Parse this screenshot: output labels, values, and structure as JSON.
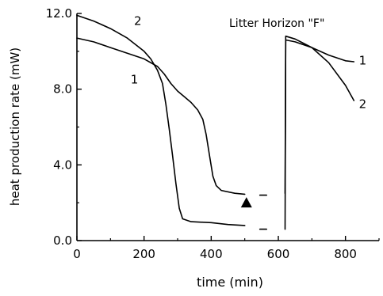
{
  "chart_data": {
    "type": "line",
    "title": "Litter Horizon \"F\"",
    "xlabel": "time (min)",
    "ylabel": "heat production rate (mW)",
    "xlim": [
      0,
      900
    ],
    "ylim": [
      0,
      12
    ],
    "x_ticks": [
      0,
      200,
      400,
      600,
      800
    ],
    "x_tick_labels": [
      "0",
      "200",
      "400",
      "600",
      "800"
    ],
    "y_ticks": [
      0,
      4,
      8,
      12
    ],
    "y_tick_labels": [
      "0.0",
      "4.0",
      "8.0",
      "12.0"
    ],
    "grid": false,
    "series": [
      {
        "name": "1",
        "label_point": [
          160,
          8.3
        ],
        "segments": [
          [
            [
              0,
              10.7
            ],
            [
              50,
              10.5
            ],
            [
              100,
              10.2
            ],
            [
              150,
              9.9
            ],
            [
              200,
              9.6
            ],
            [
              240,
              9.2
            ],
            [
              260,
              8.8
            ],
            [
              280,
              8.3
            ],
            [
              300,
              7.9
            ],
            [
              320,
              7.6
            ],
            [
              340,
              7.3
            ],
            [
              360,
              6.9
            ],
            [
              375,
              6.4
            ],
            [
              385,
              5.6
            ],
            [
              395,
              4.5
            ],
            [
              405,
              3.4
            ],
            [
              415,
              2.9
            ],
            [
              430,
              2.65
            ],
            [
              470,
              2.5
            ],
            [
              500,
              2.45
            ]
          ],
          [
            [
              545,
              2.4
            ],
            [
              565,
              2.4
            ]
          ],
          [
            [
              620,
              2.5
            ],
            [
              622,
              10.6
            ],
            [
              650,
              10.5
            ],
            [
              700,
              10.2
            ],
            [
              750,
              9.8
            ],
            [
              800,
              9.5
            ],
            [
              825,
              9.45
            ]
          ]
        ]
      },
      {
        "name": "2",
        "label_point": [
          170,
          11.4
        ],
        "segments": [
          [
            [
              0,
              11.9
            ],
            [
              50,
              11.6
            ],
            [
              100,
              11.2
            ],
            [
              150,
              10.7
            ],
            [
              200,
              10.0
            ],
            [
              220,
              9.6
            ],
            [
              240,
              9.0
            ],
            [
              255,
              8.3
            ],
            [
              265,
              7.2
            ],
            [
              275,
              5.9
            ],
            [
              285,
              4.5
            ],
            [
              295,
              3.0
            ],
            [
              305,
              1.7
            ],
            [
              315,
              1.15
            ],
            [
              340,
              1.0
            ],
            [
              400,
              0.95
            ],
            [
              450,
              0.85
            ],
            [
              500,
              0.8
            ]
          ],
          [
            [
              545,
              0.6
            ],
            [
              565,
              0.6
            ]
          ],
          [
            [
              620,
              0.6
            ],
            [
              622,
              10.8
            ],
            [
              650,
              10.65
            ],
            [
              700,
              10.2
            ],
            [
              750,
              9.4
            ],
            [
              800,
              8.2
            ],
            [
              825,
              7.4
            ]
          ]
        ]
      }
    ],
    "series_label_points": {
      "1": [
        840,
        9.3
      ],
      "2": [
        840,
        7.0
      ]
    },
    "annotations": [
      {
        "type": "triangle-marker",
        "x": 505,
        "y": 2.0
      }
    ],
    "axis_break": {
      "from": 530,
      "to": 590
    }
  }
}
